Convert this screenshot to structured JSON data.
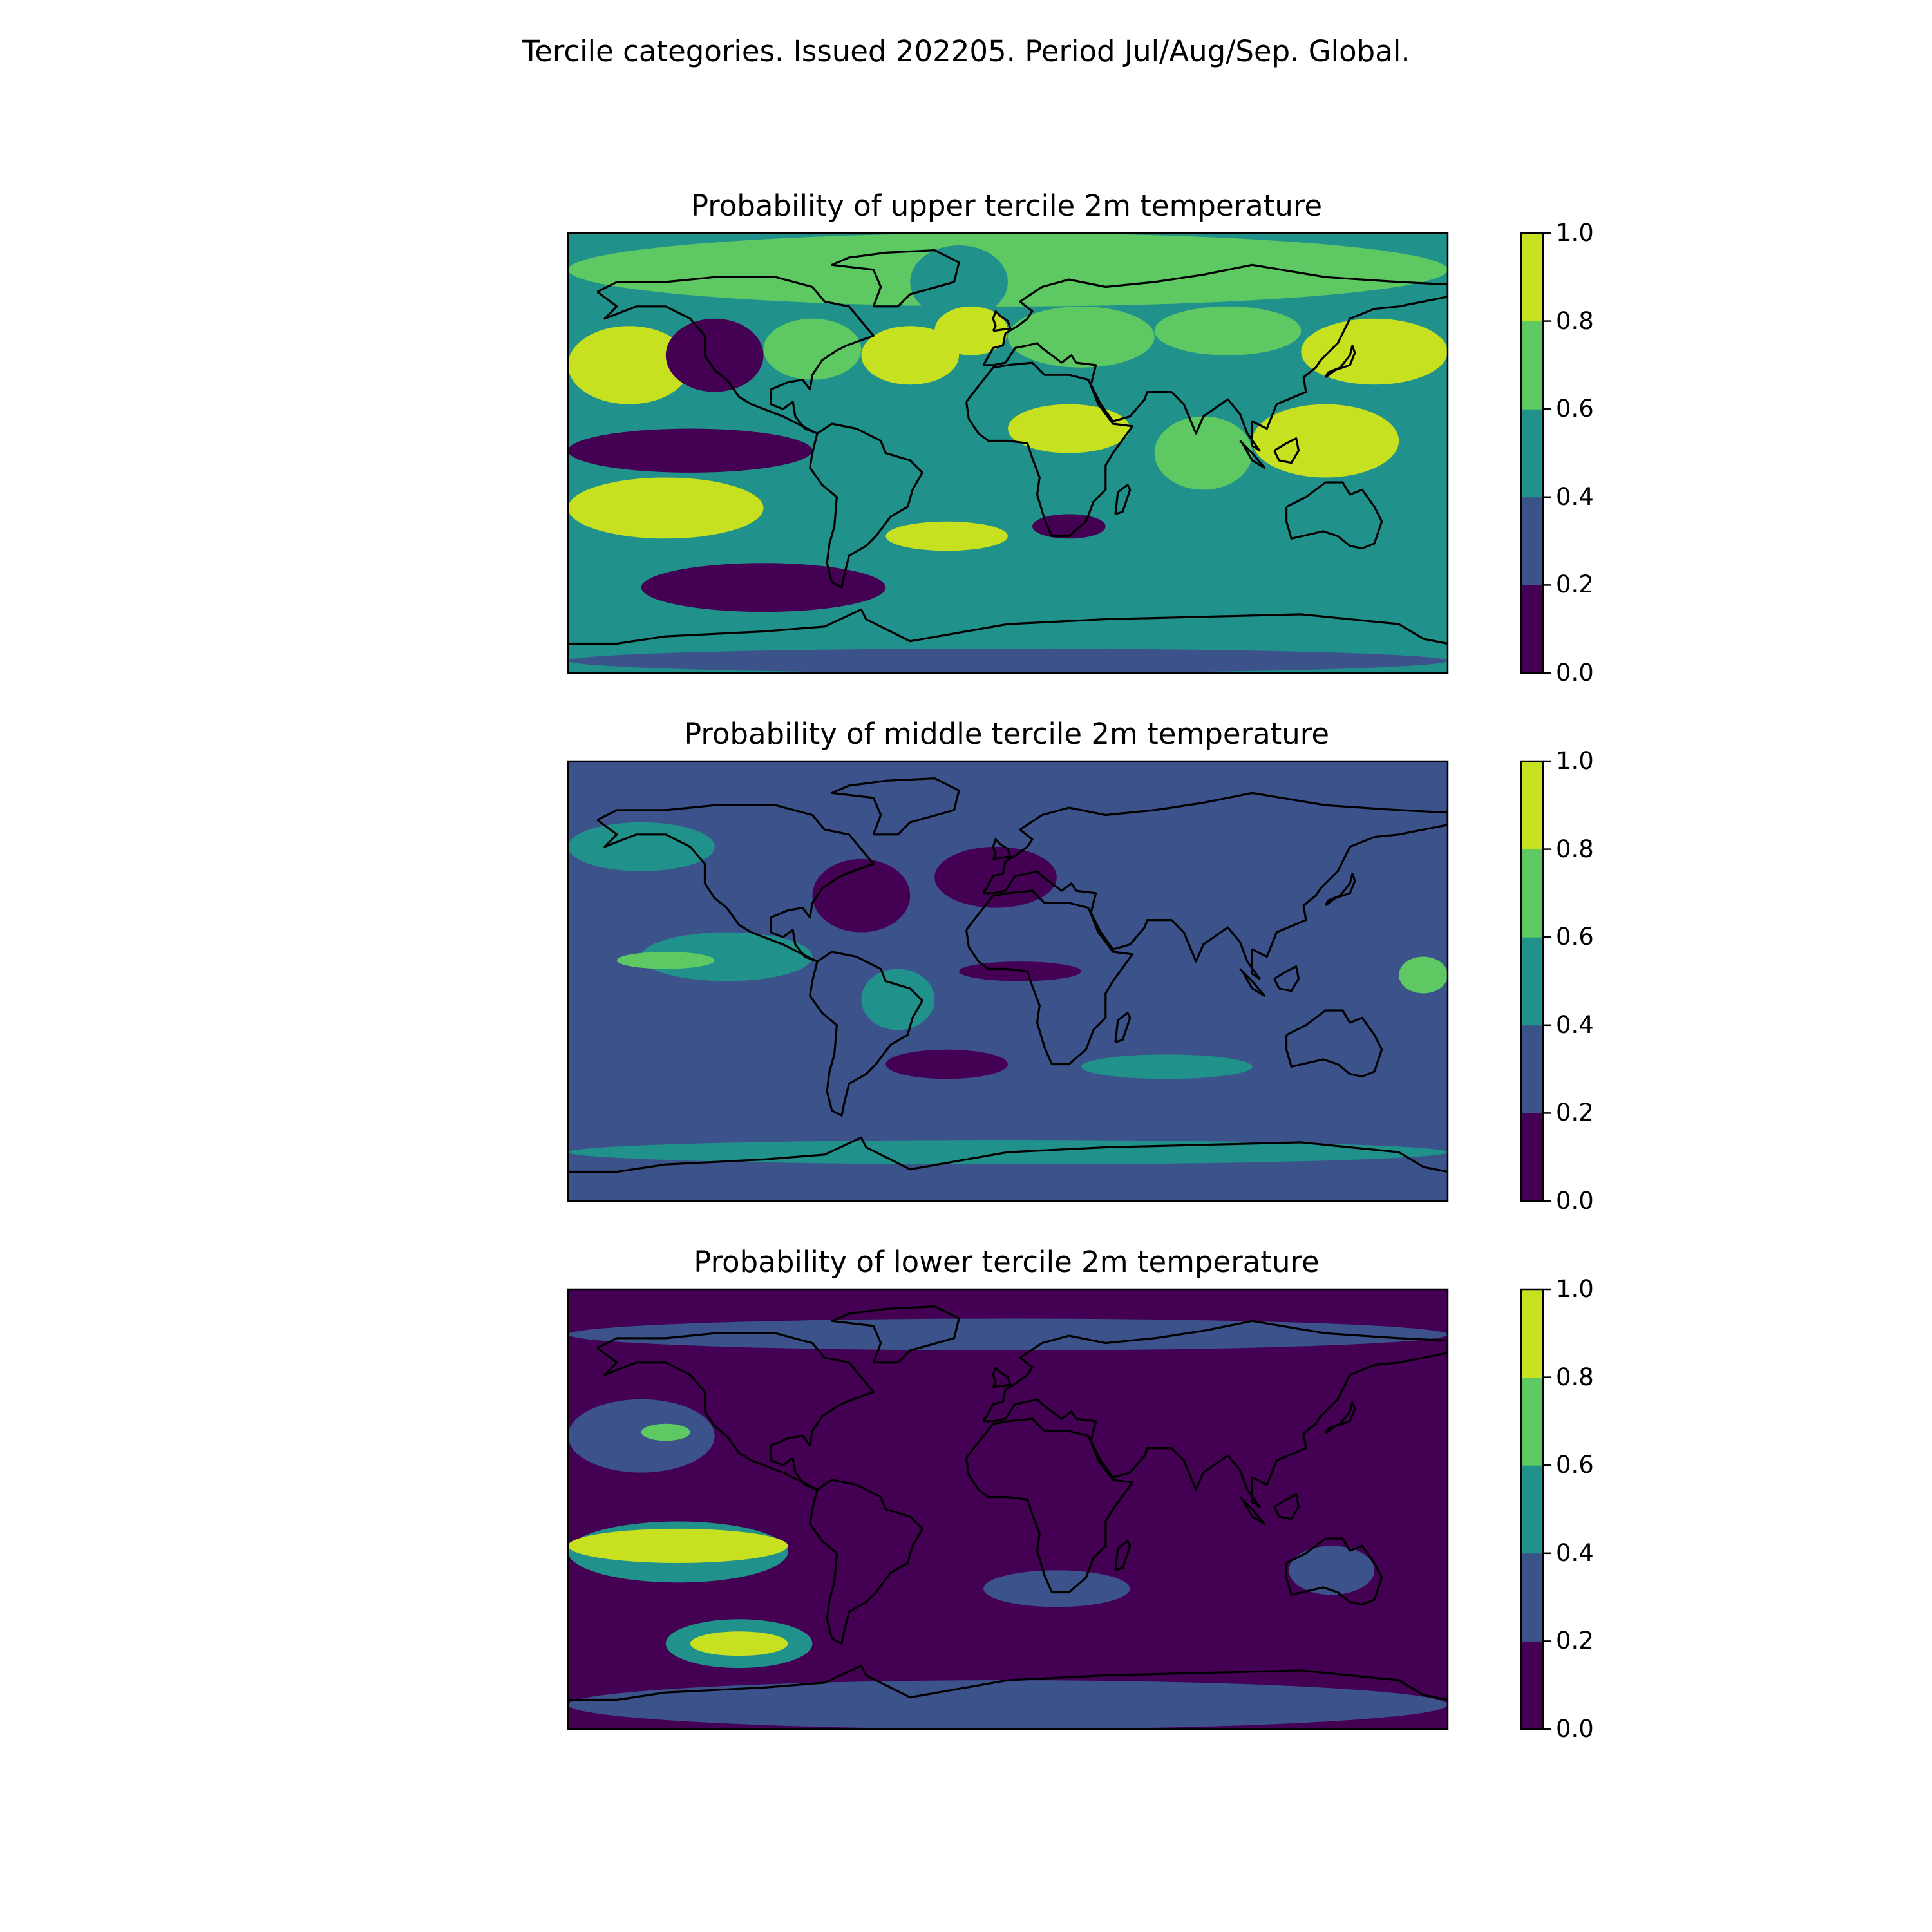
{
  "figure": {
    "title": "Tercile categories. Issued 202205. Period Jul/Aug/Sep. Global."
  },
  "palette": {
    "bins": [
      "#440154",
      "#3b528b",
      "#21918c",
      "#5ec962",
      "#c7e020"
    ],
    "bin_bounds": [
      0.0,
      0.2,
      0.4,
      0.6,
      0.8,
      1.0
    ],
    "coastline": "#000000",
    "frame": "#000000"
  },
  "colorbar": {
    "ticks": [
      "0.0",
      "0.2",
      "0.4",
      "0.6",
      "0.8",
      "1.0"
    ]
  },
  "panels": [
    {
      "id": "upper",
      "title": "Probability of upper tercile 2m temperature",
      "background_level": 0.5,
      "features": [
        {
          "lon": [
            -180,
            180
          ],
          "lat": [
            60,
            90
          ],
          "level": 0.7
        },
        {
          "lon": [
            -40,
            0
          ],
          "lat": [
            55,
            85
          ],
          "level": 0.5
        },
        {
          "lon": [
            -180,
            -130
          ],
          "lat": [
            20,
            52
          ],
          "level": 0.9
        },
        {
          "lon": [
            -140,
            -100
          ],
          "lat": [
            25,
            55
          ],
          "level": 0.1
        },
        {
          "lon": [
            -100,
            -60
          ],
          "lat": [
            30,
            55
          ],
          "level": 0.7
        },
        {
          "lon": [
            -60,
            -20
          ],
          "lat": [
            28,
            52
          ],
          "level": 0.9
        },
        {
          "lon": [
            -30,
            0
          ],
          "lat": [
            40,
            60
          ],
          "level": 0.9
        },
        {
          "lon": [
            0,
            60
          ],
          "lat": [
            35,
            60
          ],
          "level": 0.7
        },
        {
          "lon": [
            60,
            120
          ],
          "lat": [
            40,
            60
          ],
          "level": 0.7
        },
        {
          "lon": [
            120,
            180
          ],
          "lat": [
            28,
            55
          ],
          "level": 0.9
        },
        {
          "lon": [
            100,
            160
          ],
          "lat": [
            -10,
            20
          ],
          "level": 0.9
        },
        {
          "lon": [
            0,
            50
          ],
          "lat": [
            0,
            20
          ],
          "level": 0.9
        },
        {
          "lon": [
            60,
            100
          ],
          "lat": [
            -15,
            15
          ],
          "level": 0.7
        },
        {
          "lon": [
            -180,
            -80
          ],
          "lat": [
            -8,
            10
          ],
          "level": 0.1
        },
        {
          "lon": [
            -180,
            -100
          ],
          "lat": [
            -35,
            -10
          ],
          "level": 0.9
        },
        {
          "lon": [
            -50,
            0
          ],
          "lat": [
            -40,
            -28
          ],
          "level": 0.9
        },
        {
          "lon": [
            -150,
            -50
          ],
          "lat": [
            -65,
            -45
          ],
          "level": 0.1
        },
        {
          "lon": [
            -60,
            120
          ],
          "lat": [
            -80,
            -60
          ],
          "level": 0.5
        },
        {
          "lon": [
            10,
            40
          ],
          "lat": [
            -35,
            -25
          ],
          "level": 0.1
        },
        {
          "lon": [
            -180,
            180
          ],
          "lat": [
            -90,
            -80
          ],
          "level": 0.3
        }
      ]
    },
    {
      "id": "middle",
      "title": "Probability of middle tercile 2m temperature",
      "background_level": 0.3,
      "features": [
        {
          "lon": [
            -180,
            -120
          ],
          "lat": [
            45,
            65
          ],
          "level": 0.5
        },
        {
          "lon": [
            -80,
            -40
          ],
          "lat": [
            20,
            50
          ],
          "level": 0.1
        },
        {
          "lon": [
            -30,
            20
          ],
          "lat": [
            30,
            55
          ],
          "level": 0.1
        },
        {
          "lon": [
            -150,
            -80
          ],
          "lat": [
            0,
            20
          ],
          "level": 0.5
        },
        {
          "lon": [
            -160,
            -120
          ],
          "lat": [
            5,
            12
          ],
          "level": 0.7
        },
        {
          "lon": [
            -60,
            -30
          ],
          "lat": [
            -20,
            5
          ],
          "level": 0.5
        },
        {
          "lon": [
            -50,
            0
          ],
          "lat": [
            -40,
            -28
          ],
          "level": 0.1
        },
        {
          "lon": [
            -20,
            30
          ],
          "lat": [
            0,
            8
          ],
          "level": 0.1
        },
        {
          "lon": [
            160,
            180
          ],
          "lat": [
            -5,
            10
          ],
          "level": 0.7
        },
        {
          "lon": [
            -180,
            180
          ],
          "lat": [
            -75,
            -65
          ],
          "level": 0.5
        },
        {
          "lon": [
            30,
            100
          ],
          "lat": [
            -40,
            -30
          ],
          "level": 0.5
        }
      ]
    },
    {
      "id": "lower",
      "title": "Probability of lower tercile 2m temperature",
      "background_level": 0.1,
      "features": [
        {
          "lon": [
            -180,
            180
          ],
          "lat": [
            65,
            78
          ],
          "level": 0.3
        },
        {
          "lon": [
            -180,
            -120
          ],
          "lat": [
            15,
            45
          ],
          "level": 0.3
        },
        {
          "lon": [
            -150,
            -130
          ],
          "lat": [
            28,
            35
          ],
          "level": 0.7
        },
        {
          "lon": [
            -180,
            -90
          ],
          "lat": [
            -30,
            -5
          ],
          "level": 0.5
        },
        {
          "lon": [
            -180,
            -90
          ],
          "lat": [
            -22,
            -8
          ],
          "level": 0.9
        },
        {
          "lon": [
            -140,
            -80
          ],
          "lat": [
            -65,
            -45
          ],
          "level": 0.5
        },
        {
          "lon": [
            -130,
            -90
          ],
          "lat": [
            -60,
            -50
          ],
          "level": 0.9
        },
        {
          "lon": [
            115,
            150
          ],
          "lat": [
            -35,
            -15
          ],
          "level": 0.3
        },
        {
          "lon": [
            -10,
            50
          ],
          "lat": [
            -40,
            -25
          ],
          "level": 0.3
        },
        {
          "lon": [
            -180,
            180
          ],
          "lat": [
            -90,
            -70
          ],
          "level": 0.3
        }
      ]
    }
  ]
}
